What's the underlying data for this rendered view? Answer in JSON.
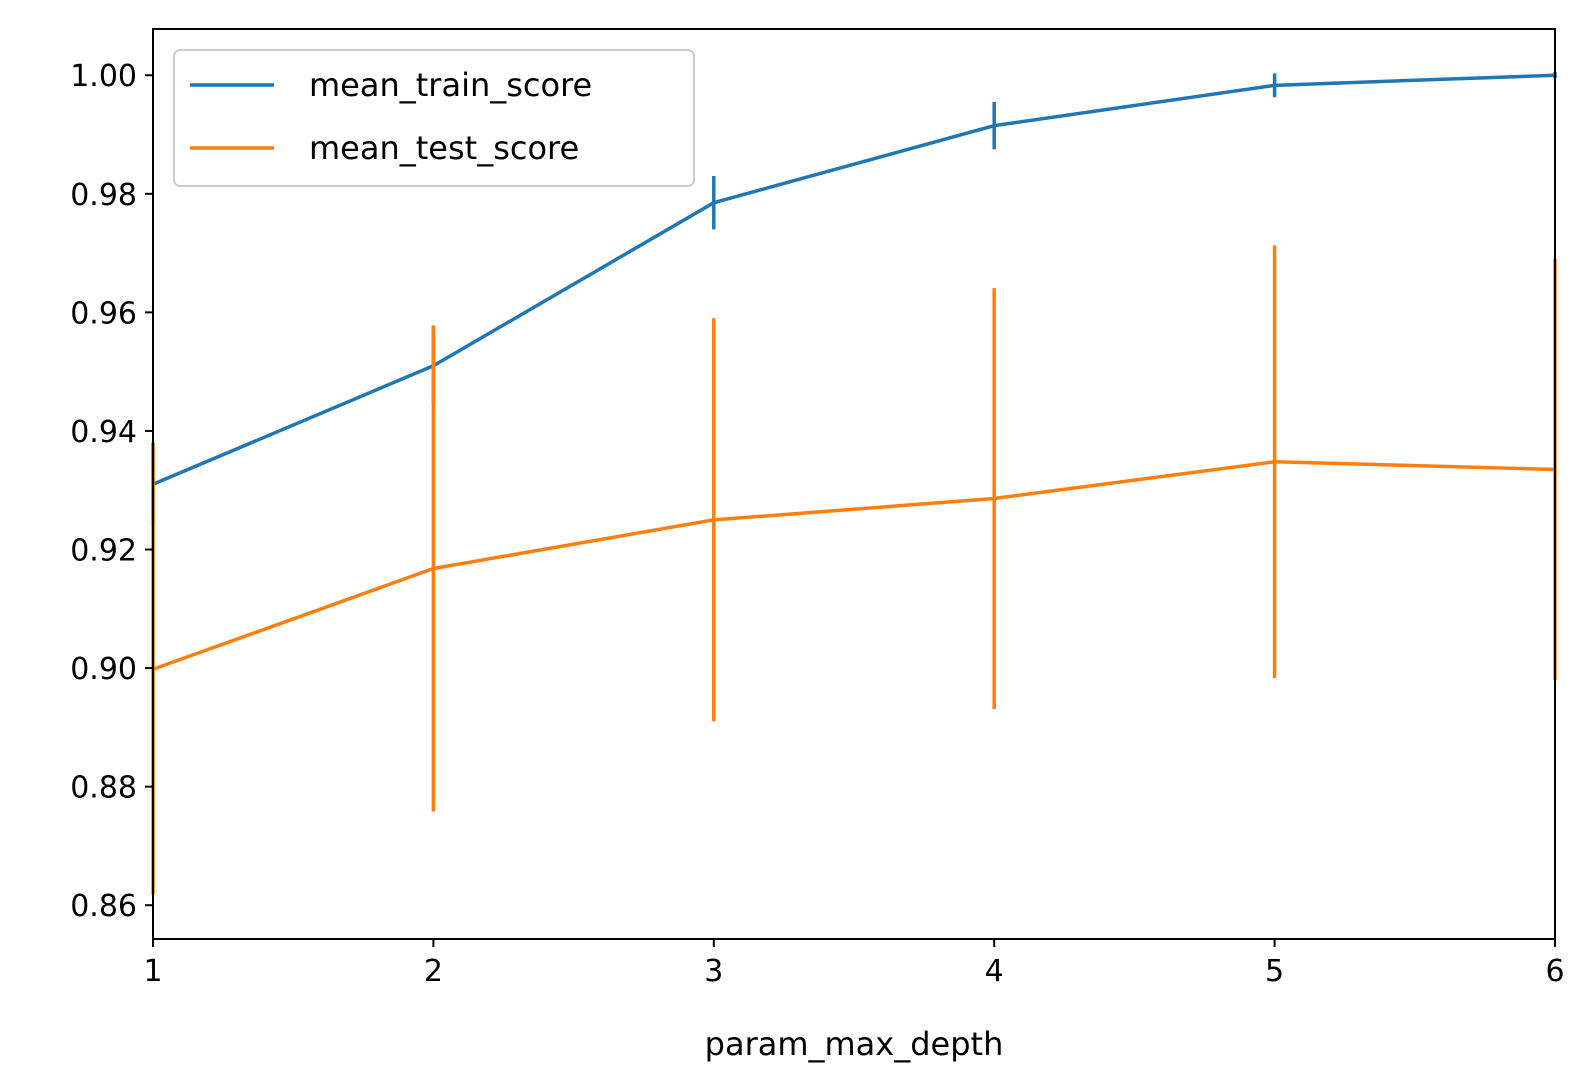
{
  "chart_data": {
    "type": "line",
    "title": "",
    "xlabel": "param_max_depth",
    "ylabel": "",
    "x": [
      1,
      2,
      3,
      4,
      5,
      6
    ],
    "xlim": [
      1,
      6
    ],
    "ylim": [
      0.8543,
      1.0078
    ],
    "x_ticks": [
      "1",
      "2",
      "3",
      "4",
      "5",
      "6"
    ],
    "y_ticks": [
      0.86,
      0.88,
      0.9,
      0.92,
      0.94,
      0.96,
      0.98,
      1.0
    ],
    "y_tick_labels": [
      "0.86",
      "0.88",
      "0.90",
      "0.92",
      "0.94",
      "0.96",
      "0.98",
      "1.00"
    ],
    "grid": false,
    "legend_position": "upper left",
    "series": [
      {
        "name": "mean_train_score",
        "color": "#1f77b4",
        "values": [
          0.931,
          0.951,
          0.9785,
          0.9915,
          0.9983,
          1.0
        ],
        "error": [
          0.007,
          0.0065,
          0.0045,
          0.004,
          0.002,
          0.0005
        ]
      },
      {
        "name": "mean_test_score",
        "color": "#ff7f0e",
        "values": [
          0.8998,
          0.9168,
          0.925,
          0.9286,
          0.9348,
          0.9335
        ],
        "error": [
          0.038,
          0.041,
          0.034,
          0.0355,
          0.0365,
          0.0355
        ]
      }
    ]
  }
}
